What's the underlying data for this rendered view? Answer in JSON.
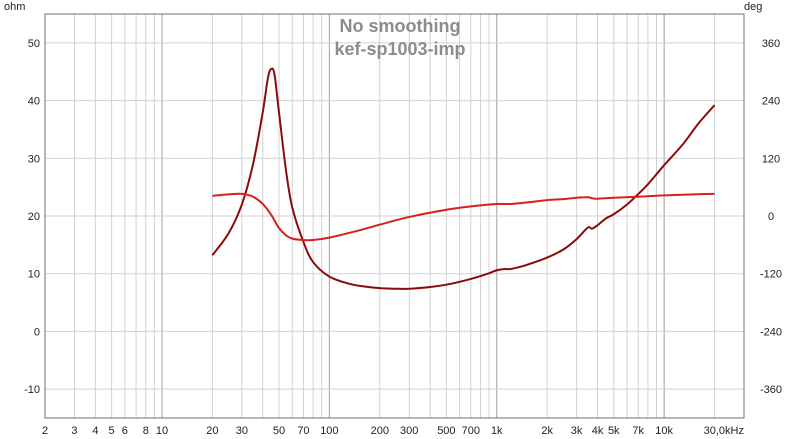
{
  "chart_data": {
    "type": "line",
    "title": "No smoothing",
    "subtitle": "kef-sp1003-imp",
    "ylabel_left": "ohm",
    "ylabel_right": "deg",
    "x_scale": "log",
    "xlim": [
      2,
      30000
    ],
    "ylim_left": [
      -15,
      55
    ],
    "ylim_right": [
      -420,
      420
    ],
    "y_left_ticks": [
      -10,
      0,
      10,
      20,
      30,
      40,
      50
    ],
    "y_right_ticks": [
      -360,
      -240,
      -120,
      0,
      120,
      240,
      360
    ],
    "x_ticks": [
      {
        "v": 2,
        "label": "2"
      },
      {
        "v": 3,
        "label": "3"
      },
      {
        "v": 4,
        "label": "4"
      },
      {
        "v": 5,
        "label": "5"
      },
      {
        "v": 6,
        "label": "6"
      },
      {
        "v": 8,
        "label": "8"
      },
      {
        "v": 10,
        "label": "10"
      },
      {
        "v": 20,
        "label": "20"
      },
      {
        "v": 30,
        "label": "30"
      },
      {
        "v": 50,
        "label": "50"
      },
      {
        "v": 70,
        "label": "70"
      },
      {
        "v": 100,
        "label": "100"
      },
      {
        "v": 200,
        "label": "200"
      },
      {
        "v": 300,
        "label": "300"
      },
      {
        "v": 500,
        "label": "500"
      },
      {
        "v": 700,
        "label": "700"
      },
      {
        "v": 1000,
        "label": "1k"
      },
      {
        "v": 2000,
        "label": "2k"
      },
      {
        "v": 3000,
        "label": "3k"
      },
      {
        "v": 4000,
        "label": "4k"
      },
      {
        "v": 5000,
        "label": "5k"
      },
      {
        "v": 7000,
        "label": "7k"
      },
      {
        "v": 10000,
        "label": "10k"
      },
      {
        "v": 30000,
        "label": "30,0kHz"
      }
    ],
    "grid": true,
    "series": [
      {
        "axis": "left",
        "color": "#8b0a0a",
        "x": [
          20,
          25,
          30,
          35,
          40,
          43,
          45,
          47,
          50,
          55,
          60,
          70,
          80,
          100,
          130,
          160,
          200,
          250,
          300,
          400,
          500,
          600,
          700,
          800,
          900,
          1000,
          1100,
          1200,
          1300,
          1500,
          2000,
          2500,
          3000,
          3500,
          3700,
          4000,
          4500,
          5000,
          6000,
          7000,
          8000,
          10000,
          13000,
          16000,
          20000
        ],
        "values": [
          13.2,
          17,
          22,
          29,
          38,
          44,
          45.5,
          44.5,
          38,
          28,
          21.5,
          15.5,
          12,
          9.5,
          8.3,
          7.8,
          7.5,
          7.4,
          7.4,
          7.7,
          8.1,
          8.6,
          9.1,
          9.6,
          10.1,
          10.6,
          10.8,
          10.8,
          11.0,
          11.5,
          12.8,
          14.2,
          16.0,
          18.0,
          17.8,
          18.4,
          19.6,
          20.3,
          22.0,
          23.8,
          25.5,
          28.8,
          32.5,
          36.0,
          39.2
        ]
      },
      {
        "axis": "right",
        "color": "#d42020",
        "x": [
          20,
          25,
          30,
          35,
          40,
          45,
          50,
          55,
          60,
          70,
          80,
          100,
          150,
          200,
          300,
          500,
          700,
          1000,
          1200,
          1500,
          2000,
          2500,
          3000,
          3500,
          3700,
          4000,
          5000,
          7000,
          10000,
          15000,
          20000
        ],
        "values": [
          42,
          45,
          46,
          40,
          25,
          2,
          -25,
          -40,
          -47,
          -50,
          -50,
          -45,
          -30,
          -18,
          -2,
          13,
          20,
          25,
          25,
          28,
          33,
          35,
          38,
          39,
          37,
          36,
          38,
          40,
          43,
          45,
          46
        ]
      }
    ]
  }
}
